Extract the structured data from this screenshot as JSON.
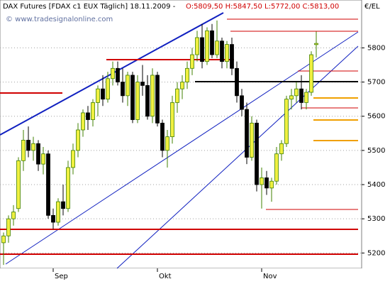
{
  "chart_data": {
    "type": "candlestick",
    "title": "DAX Futures [FDAX c1 EUX  Täglich] 18.11.2009 -",
    "quote": "O:5809,50 H:5847,50 L:5772,00 C:5813,00",
    "watermark": "© www.tradesignalonline.com",
    "y_axis_label": "€/EL",
    "categories": [
      null,
      null,
      null,
      null,
      null,
      null,
      null,
      null,
      null,
      null,
      "Sep",
      null,
      null,
      null,
      null,
      null,
      null,
      null,
      null,
      null,
      null,
      null,
      null,
      null,
      null,
      null,
      null,
      null,
      null,
      null,
      null,
      "Okt",
      null,
      null,
      null,
      null,
      null,
      null,
      null,
      null,
      null,
      null,
      null,
      null,
      null,
      null,
      null,
      null,
      null,
      null,
      null,
      null,
      "Nov",
      null,
      null,
      null,
      null,
      null,
      null,
      null,
      null,
      null,
      null,
      null
    ],
    "open": [
      5230,
      5250,
      5300,
      5330,
      5470,
      5530,
      5500,
      5520,
      5460,
      5490,
      5310,
      5290,
      5350,
      5330,
      5450,
      5500,
      5560,
      5610,
      5590,
      5640,
      5680,
      5650,
      5710,
      5740,
      5700,
      5660,
      5720,
      5590,
      5700,
      5690,
      5600,
      5720,
      5580,
      5500,
      5540,
      5640,
      5680,
      5700,
      5740,
      5780,
      5830,
      5760,
      5850,
      5780,
      5820,
      5760,
      5810,
      5740,
      5660,
      5620,
      5480,
      5580,
      5400,
      5420,
      5390,
      5410,
      5490,
      5520,
      5650,
      5660,
      5680,
      5640,
      5670,
      5809.5
    ],
    "high": [
      5260,
      5310,
      5340,
      5480,
      5560,
      5570,
      5540,
      5530,
      5510,
      5500,
      5330,
      5360,
      5400,
      5470,
      5520,
      5580,
      5620,
      5630,
      5650,
      5690,
      5720,
      5730,
      5760,
      5760,
      5740,
      5730,
      5730,
      5720,
      5750,
      5720,
      5740,
      5730,
      5590,
      5560,
      5660,
      5700,
      5720,
      5760,
      5800,
      5850,
      5870,
      5860,
      5870,
      5880,
      5830,
      5820,
      5830,
      5760,
      5680,
      5640,
      5600,
      5590,
      5450,
      5440,
      5420,
      5510,
      5530,
      5660,
      5680,
      5700,
      5720,
      5680,
      5790,
      5847.5
    ],
    "low": [
      5165,
      5230,
      5280,
      5320,
      5440,
      5480,
      5470,
      5440,
      5430,
      5300,
      5270,
      5280,
      5310,
      5320,
      5430,
      5480,
      5540,
      5560,
      5570,
      5600,
      5630,
      5640,
      5690,
      5690,
      5640,
      5630,
      5580,
      5580,
      5660,
      5590,
      5580,
      5570,
      5480,
      5450,
      5520,
      5610,
      5650,
      5680,
      5720,
      5760,
      5740,
      5750,
      5770,
      5770,
      5740,
      5740,
      5720,
      5640,
      5600,
      5460,
      5470,
      5380,
      5330,
      5370,
      5350,
      5400,
      5470,
      5510,
      5620,
      5640,
      5620,
      5620,
      5660,
      5772
    ],
    "close": [
      5250,
      5300,
      5320,
      5470,
      5530,
      5500,
      5520,
      5460,
      5490,
      5310,
      5290,
      5350,
      5330,
      5450,
      5500,
      5560,
      5610,
      5590,
      5640,
      5680,
      5650,
      5710,
      5740,
      5700,
      5660,
      5720,
      5590,
      5700,
      5690,
      5600,
      5720,
      5580,
      5500,
      5540,
      5640,
      5680,
      5700,
      5740,
      5780,
      5830,
      5760,
      5850,
      5780,
      5820,
      5760,
      5810,
      5740,
      5660,
      5620,
      5480,
      5580,
      5400,
      5420,
      5390,
      5410,
      5490,
      5520,
      5650,
      5660,
      5680,
      5640,
      5670,
      5780,
      5813
    ],
    "up_color": "#f0f040",
    "down_color": "#000000",
    "ylim": [
      5155,
      5940
    ],
    "yticks": [
      5200,
      5300,
      5400,
      5500,
      5600,
      5700,
      5800
    ],
    "grid": true
  }
}
